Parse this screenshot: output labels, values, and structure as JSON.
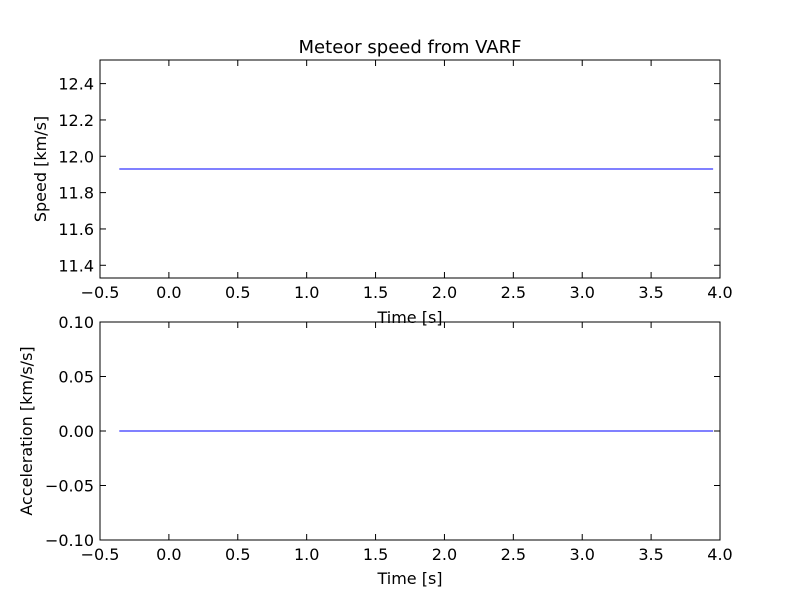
{
  "chart_data": [
    {
      "type": "line",
      "title": "Meteor speed from  VARF",
      "xlabel": "Time [s]",
      "ylabel": "Speed [km/s]",
      "xlim": [
        -0.5,
        4.0
      ],
      "ylim": [
        11.33,
        12.53
      ],
      "xticks": [
        -0.5,
        0.0,
        0.5,
        1.0,
        1.5,
        2.0,
        2.5,
        3.0,
        3.5,
        4.0
      ],
      "xticklabels": [
        "−0.5",
        "0.0",
        "0.5",
        "1.0",
        "1.5",
        "2.0",
        "2.5",
        "3.0",
        "3.5",
        "4.0"
      ],
      "yticks": [
        11.4,
        11.6,
        11.8,
        12.0,
        12.2,
        12.4
      ],
      "yticklabels": [
        "11.4",
        "11.6",
        "11.8",
        "12.0",
        "12.2",
        "12.4"
      ],
      "grid": false,
      "series": [
        {
          "color": "#0000ff",
          "x": [
            -0.36,
            3.95
          ],
          "y": [
            11.93,
            11.93
          ]
        }
      ]
    },
    {
      "type": "line",
      "title": "",
      "xlabel": "Time [s]",
      "ylabel": "Acceleration [km/s/s]",
      "xlim": [
        -0.5,
        4.0
      ],
      "ylim": [
        -0.1,
        0.1
      ],
      "xticks": [
        -0.5,
        0.0,
        0.5,
        1.0,
        1.5,
        2.0,
        2.5,
        3.0,
        3.5,
        4.0
      ],
      "xticklabels": [
        "−0.5",
        "0.0",
        "0.5",
        "1.0",
        "1.5",
        "2.0",
        "2.5",
        "3.0",
        "3.5",
        "4.0"
      ],
      "yticks": [
        -0.1,
        -0.05,
        0.0,
        0.05,
        0.1
      ],
      "yticklabels": [
        "−0.10",
        "−0.05",
        "0.00",
        "0.05",
        "0.10"
      ],
      "grid": false,
      "series": [
        {
          "color": "#0000ff",
          "x": [
            -0.36,
            3.95
          ],
          "y": [
            0.0,
            0.0
          ]
        }
      ]
    }
  ]
}
